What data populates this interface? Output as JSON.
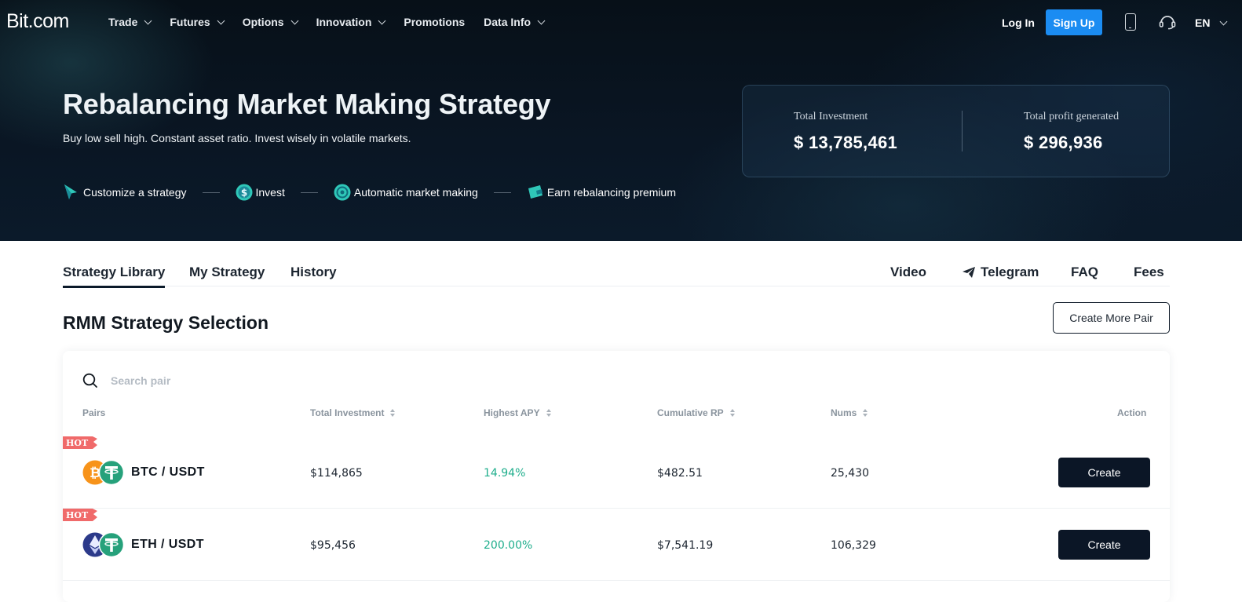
{
  "nav": {
    "logo": "Bit.com",
    "menu": [
      {
        "label": "Trade",
        "dropdown": true
      },
      {
        "label": "Futures",
        "dropdown": true
      },
      {
        "label": "Options",
        "dropdown": true
      },
      {
        "label": "Innovation",
        "dropdown": true
      },
      {
        "label": "Promotions",
        "dropdown": false
      },
      {
        "label": "Data Info",
        "dropdown": true
      }
    ],
    "login_label": "Log In",
    "signup_label": "Sign Up",
    "lang_label": "EN",
    "icons": [
      "phone-icon",
      "headset-icon"
    ]
  },
  "hero": {
    "title": "Rebalancing Market Making Strategy",
    "subtitle": "Buy low sell high. Constant asset ratio. Invest wisely in volatile markets.",
    "steps": [
      {
        "label": "Customize a strategy",
        "icon": "cursor-icon"
      },
      {
        "label": "Invest",
        "icon": "dollar-coin-icon"
      },
      {
        "label": "Automatic market making",
        "icon": "cycle-icon"
      },
      {
        "label": "Earn rebalancing premium",
        "icon": "wallet-icon"
      }
    ]
  },
  "stats": {
    "total_investment_label": "Total Investment",
    "total_investment_value": "$ 13,785,461",
    "total_profit_label": "Total profit generated",
    "total_profit_value": "$ 296,936"
  },
  "tabs": {
    "items": [
      "Strategy Library",
      "My Strategy",
      "History"
    ],
    "active": "Strategy Library",
    "links": [
      "Video",
      "Telegram",
      "FAQ",
      "Fees"
    ]
  },
  "section": {
    "title": "RMM Strategy Selection",
    "create_more_label": "Create More Pair"
  },
  "table": {
    "search_placeholder": "Search pair",
    "columns": {
      "pairs": "Pairs",
      "total_investment": "Total Investment",
      "highest_apy": "Highest APY",
      "cumulative_rp": "Cumulative RP",
      "nums": "Nums",
      "action": "Action"
    },
    "rows": [
      {
        "badge": "HOT",
        "pair": "BTC / USDT",
        "base_icon": "bitcoin-icon",
        "quote_icon": "tether-icon",
        "total_investment": "$114,865",
        "highest_apy": "14.94%",
        "cumulative_rp": "$482.51",
        "nums": "25,430",
        "action_label": "Create"
      },
      {
        "badge": "HOT",
        "pair": "ETH / USDT",
        "base_icon": "ethereum-icon",
        "quote_icon": "tether-icon",
        "total_investment": "$95,456",
        "highest_apy": "200.00%",
        "cumulative_rp": "$7,541.19",
        "nums": "106,329",
        "action_label": "Create"
      }
    ]
  },
  "colors": {
    "accent_blue": "#1b8cf2",
    "apy_green": "#1fae8c",
    "dark_button": "#0b1626",
    "hot_badge": "#f06a6a",
    "btc_orange": "#f7931a",
    "usdt_green": "#26a17b",
    "eth_navy": "#2c3a8a"
  }
}
